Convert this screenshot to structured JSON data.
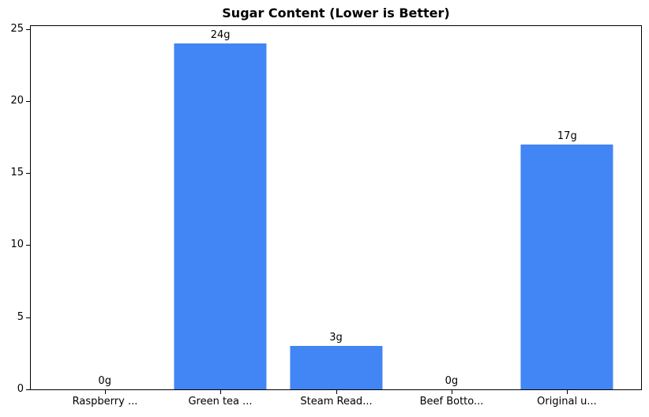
{
  "chart_data": {
    "type": "bar",
    "title": "Sugar Content (Lower is Better)",
    "categories": [
      "Raspberry ...",
      "Green tea ...",
      "Steam Read...",
      "Beef Botto...",
      "Original u..."
    ],
    "values": [
      0,
      24,
      3,
      0,
      17
    ],
    "bar_labels": [
      "0g",
      "24g",
      "3g",
      "0g",
      "17g"
    ],
    "unit": "g",
    "xlabel": "",
    "ylabel": "",
    "ylim": [
      0,
      25.2
    ],
    "yticks": [
      0,
      5,
      10,
      15,
      20,
      25
    ],
    "ytick_labels": [
      "0",
      "5",
      "10",
      "15",
      "20",
      "25"
    ],
    "grid": false,
    "legend_position": "none",
    "bar_color": "#4285f4",
    "axis_color": "#000000",
    "text_color": "#000000",
    "background_color": "#ffffff"
  }
}
